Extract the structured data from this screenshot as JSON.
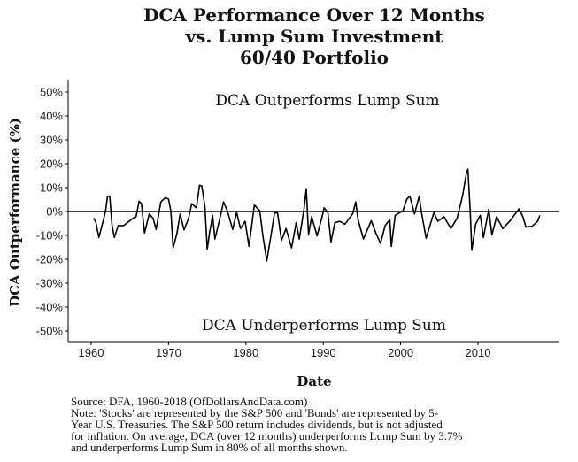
{
  "chart_data": {
    "type": "line",
    "title": [
      "DCA Performance Over 12 Months",
      "vs. Lump Sum Investment",
      "60/40 Portfolio"
    ],
    "xlabel": "Date",
    "ylabel": "DCA Outperformance (%)",
    "xlim": [
      1959.5,
      2020.5
    ],
    "ylim": [
      -53,
      55
    ],
    "x_ticks": [
      1960,
      1970,
      1980,
      1990,
      2000,
      2010
    ],
    "x_tick_labels": [
      "1960",
      "1970",
      "1980",
      "1990",
      "2000",
      "2010"
    ],
    "y_ticks": [
      50,
      40,
      30,
      20,
      10,
      0,
      -10,
      -20,
      -30,
      -40,
      -50
    ],
    "y_tick_labels": [
      "50%",
      "40%",
      "30%",
      "20%",
      "10%",
      "0%",
      "-10%",
      "-20%",
      "-30%",
      "-40%",
      "-50%"
    ],
    "reference_line": 0,
    "grid": false,
    "annotations": {
      "top": "DCA Outperforms Lump Sum",
      "bottom": "DCA Underperforms Lump Sum"
    },
    "series": [
      {
        "color": "#000000",
        "x": [
          1960.3,
          1960.6,
          1961.0,
          1961.6,
          1961.9,
          1962.1,
          1962.4,
          1962.7,
          1963.0,
          1963.5,
          1964.2,
          1965.4,
          1965.8,
          1966.2,
          1966.5,
          1966.9,
          1967.5,
          1968.0,
          1968.4,
          1969.0,
          1969.6,
          1970.0,
          1970.3,
          1970.6,
          1971.1,
          1971.5,
          1972.0,
          1972.6,
          1973.0,
          1973.6,
          1974.0,
          1974.3,
          1974.7,
          1975.0,
          1975.3,
          1975.7,
          1976.0,
          1976.6,
          1977.1,
          1977.6,
          1978.3,
          1978.8,
          1979.3,
          1979.9,
          1980.4,
          1981.1,
          1981.8,
          1982.2,
          1982.7,
          1983.3,
          1983.7,
          1984.1,
          1984.6,
          1985.2,
          1985.9,
          1986.5,
          1986.9,
          1987.5,
          1987.8,
          1988.1,
          1988.5,
          1989.2,
          1989.8,
          1990.1,
          1990.6,
          1991.0,
          1991.5,
          1992.1,
          1992.8,
          1993.8,
          1994.2,
          1994.5,
          1995.2,
          1996.2,
          1996.8,
          1997.4,
          1998.0,
          1998.6,
          1998.8,
          1999.3,
          2000.3,
          2000.8,
          2001.2,
          2001.8,
          2002.4,
          2002.7,
          2003.3,
          2003.9,
          2004.3,
          2004.8,
          2005.6,
          2006.5,
          2007.3,
          2008.0,
          2008.5,
          2008.7,
          2009.0,
          2009.2,
          2009.7,
          2010.3,
          2010.7,
          2011.4,
          2011.8,
          2012.4,
          2013.2,
          2014.1,
          2015.3,
          2015.8,
          2016.2,
          2017.0,
          2017.7,
          2018.0
        ],
        "y": [
          -2.8,
          -4.3,
          -10.9,
          -3.3,
          0.9,
          6.4,
          6.4,
          -5.9,
          -10.9,
          -5.9,
          -5.9,
          -2.8,
          -2.2,
          4.3,
          3.3,
          -9.0,
          -1.0,
          -2.8,
          -7.5,
          4.0,
          5.8,
          5.2,
          0.3,
          -15.2,
          -9.0,
          -1.0,
          -7.7,
          -2.8,
          3.3,
          1.5,
          11.0,
          10.7,
          2.1,
          -15.8,
          -9.0,
          -1.6,
          -11.5,
          -3.4,
          4.0,
          0.3,
          -7.5,
          -0.4,
          -7.1,
          -4.1,
          -14.6,
          2.7,
          0.3,
          -10.2,
          -20.7,
          -9.0,
          -0.6,
          -0.6,
          -12.1,
          -7.1,
          -15.2,
          -4.7,
          -11.5,
          0.9,
          9.5,
          -9.6,
          -2.2,
          -10.2,
          -2.8,
          1.5,
          -0.4,
          -12.7,
          -4.7,
          -4.1,
          -5.3,
          -1.0,
          4.0,
          -3.4,
          -11.5,
          -3.8,
          -9.0,
          -13.3,
          -5.9,
          -3.4,
          -14.6,
          -1.6,
          0.3,
          5.2,
          6.4,
          -1.0,
          6.4,
          -0.4,
          -11.2,
          -4.7,
          -0.4,
          -4.1,
          -2.2,
          -7.1,
          -2.8,
          6.4,
          16.1,
          17.7,
          -0.4,
          -16.2,
          -5.3,
          -1.6,
          -10.9,
          0.9,
          -9.8,
          -2.2,
          -7.1,
          -4.1,
          1.1,
          -2.2,
          -6.5,
          -6.2,
          -4.1,
          -1.6
        ]
      }
    ]
  },
  "notes": [
    "Source:  DFA, 1960-2018 (OfDollarsAndData.com)",
    "Note: 'Stocks' are represented by the S&P 500 and 'Bonds' are represented by 5-",
    "Year U.S. Treasuries. The S&P 500 return includes dividends, but is not adjusted",
    "for inflation. On average, DCA (over 12 months) underperforms Lump Sum by 3.7%",
    "and underperforms Lump Sum in 80% of all months shown."
  ]
}
